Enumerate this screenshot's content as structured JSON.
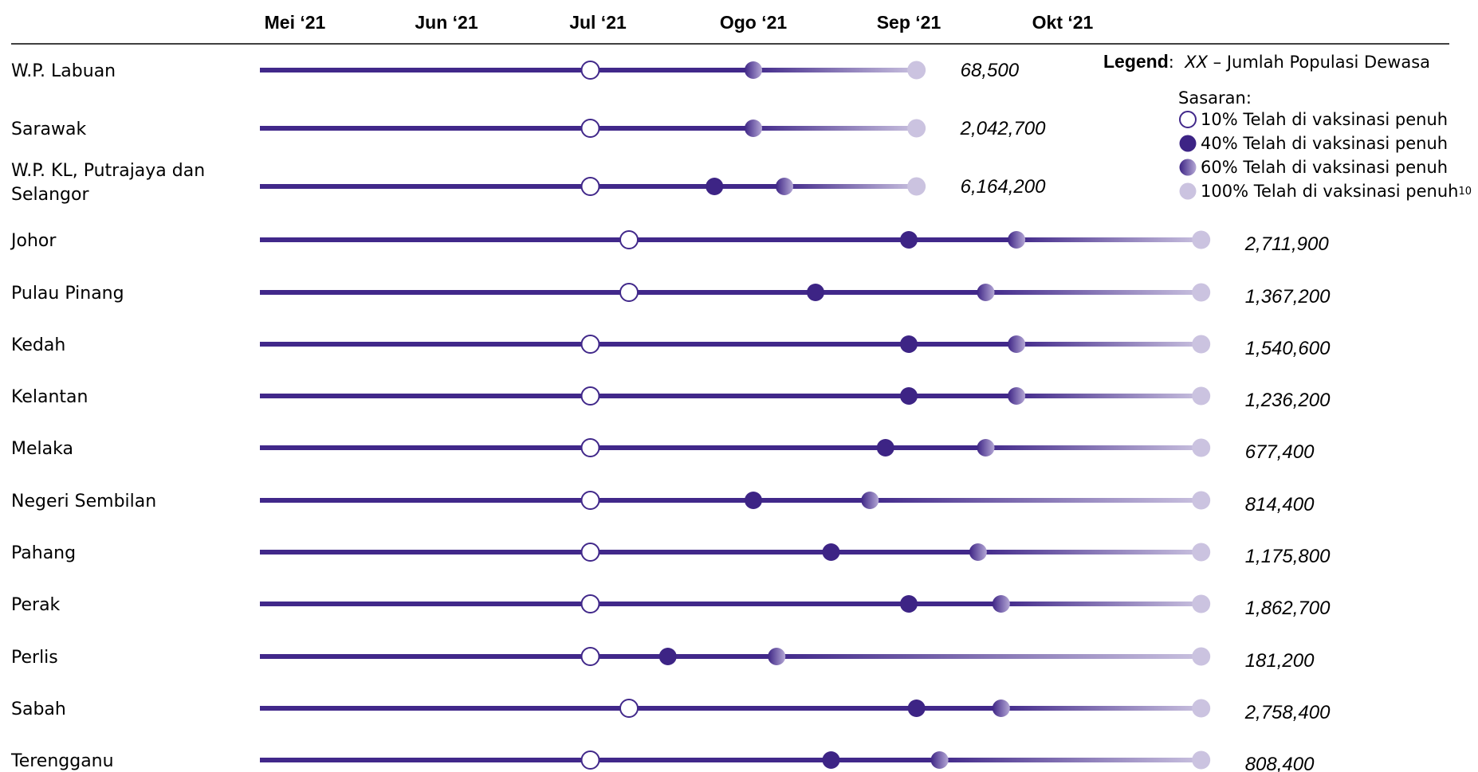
{
  "colors": {
    "line": "#41288a",
    "fade_end": "#c9c1df",
    "m40": "#3d2485",
    "m60_dark": "#3d2485",
    "m60_light": "#b5a8d6",
    "m100": "#cbc3e0",
    "rule": "#000000"
  },
  "chart_data": {
    "type": "timeline",
    "months": [
      "Mei ‘21",
      "Jun ‘21",
      "Jul ‘21",
      "Ogo ‘21",
      "Sep ‘21",
      "Okt ‘21"
    ],
    "milestone_labels": [
      "10%",
      "40%",
      "60%",
      "100%"
    ],
    "rows": [
      {
        "state": [
          "W.P. Labuan"
        ],
        "population": "68,500",
        "m10": 1.95,
        "m40": null,
        "m60": 3.0,
        "m100": 4.05
      },
      {
        "state": [
          "Sarawak"
        ],
        "population": "2,042,700",
        "m10": 1.95,
        "m40": null,
        "m60": 3.0,
        "m100": 4.05
      },
      {
        "state": [
          "W.P. KL, Putrajaya dan",
          "Selangor"
        ],
        "population": "6,164,200",
        "m10": 1.95,
        "m40": 2.75,
        "m60": 3.2,
        "m100": 4.05
      },
      {
        "state": [
          "Johor"
        ],
        "population": "2,711,900",
        "m10": 2.2,
        "m40": 4.0,
        "m60": 4.7,
        "m100": 5.9
      },
      {
        "state": [
          "Pulau Pinang"
        ],
        "population": "1,367,200",
        "m10": 2.2,
        "m40": 3.4,
        "m60": 4.5,
        "m100": 5.9
      },
      {
        "state": [
          "Kedah"
        ],
        "population": "1,540,600",
        "m10": 1.95,
        "m40": 4.0,
        "m60": 4.7,
        "m100": 5.9
      },
      {
        "state": [
          "Kelantan"
        ],
        "population": "1,236,200",
        "m10": 1.95,
        "m40": 4.0,
        "m60": 4.7,
        "m100": 5.9
      },
      {
        "state": [
          "Melaka"
        ],
        "population": "677,400",
        "m10": 1.95,
        "m40": 3.85,
        "m60": 4.5,
        "m100": 5.9
      },
      {
        "state": [
          "Negeri Sembilan"
        ],
        "population": "814,400",
        "m10": 1.95,
        "m40": 3.0,
        "m60": 3.75,
        "m100": 5.9
      },
      {
        "state": [
          "Pahang"
        ],
        "population": "1,175,800",
        "m10": 1.95,
        "m40": 3.5,
        "m60": 4.45,
        "m100": 5.9
      },
      {
        "state": [
          "Perak"
        ],
        "population": "1,862,700",
        "m10": 1.95,
        "m40": 4.0,
        "m60": 4.6,
        "m100": 5.9
      },
      {
        "state": [
          "Perlis"
        ],
        "population": "181,200",
        "m10": 1.95,
        "m40": 2.45,
        "m60": 3.15,
        "m100": 5.9
      },
      {
        "state": [
          "Sabah"
        ],
        "population": "2,758,400",
        "m10": 2.2,
        "m40": 4.05,
        "m60": 4.6,
        "m100": 5.9
      },
      {
        "state": [
          "Terengganu"
        ],
        "population": "808,400",
        "m10": 1.95,
        "m40": 3.5,
        "m60": 4.2,
        "m100": 5.9
      }
    ]
  },
  "legend": {
    "title": "Legend",
    "colon": ":",
    "xx": "XX",
    "desc": " – Jumlah Populasi Dewasa",
    "subtitle": "Sasaran:",
    "items": [
      "10% Telah di vaksinasi penuh",
      "40% Telah di vaksinasi penuh",
      "60% Telah di vaksinasi penuh",
      "100% Telah di vaksinasi penuh"
    ],
    "footnote": "10"
  }
}
